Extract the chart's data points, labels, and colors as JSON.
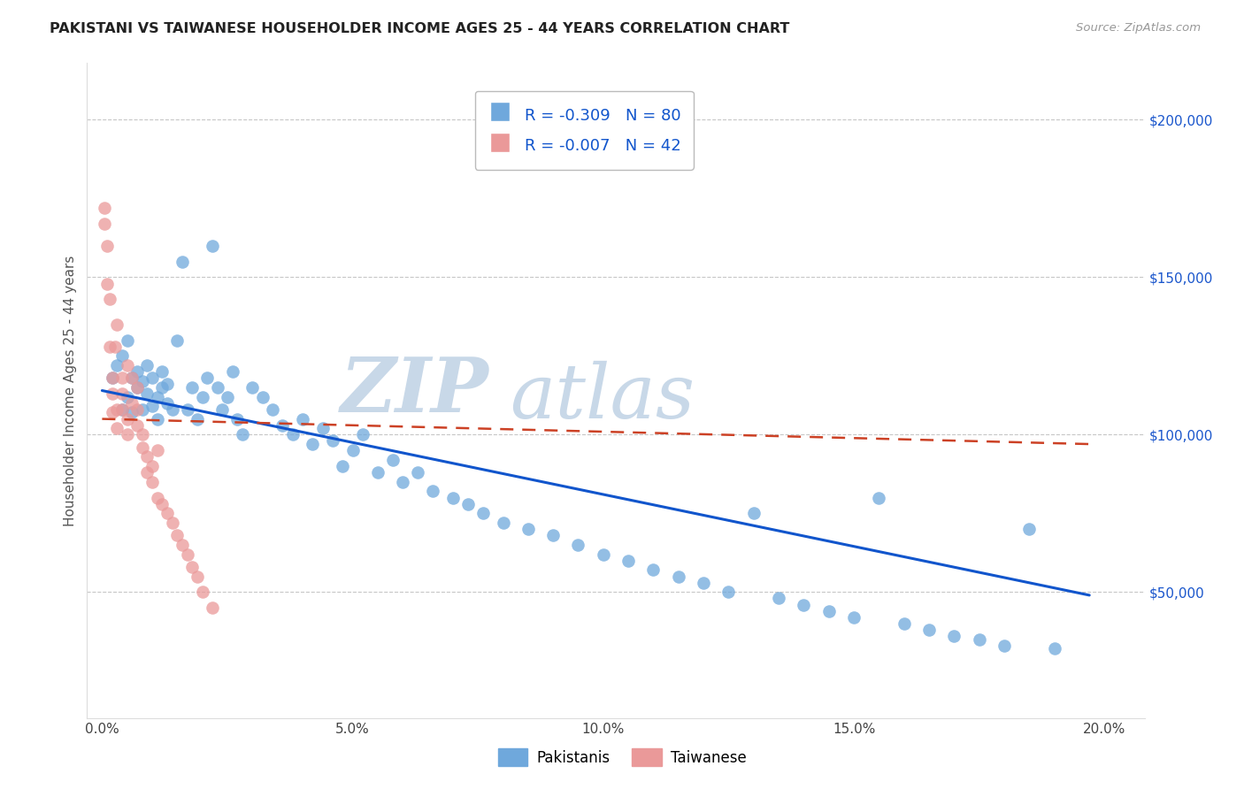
{
  "title": "PAKISTANI VS TAIWANESE HOUSEHOLDER INCOME AGES 25 - 44 YEARS CORRELATION CHART",
  "source": "Source: ZipAtlas.com",
  "xlabel_ticks": [
    "0.0%",
    "5.0%",
    "10.0%",
    "15.0%",
    "20.0%"
  ],
  "xlabel_tick_vals": [
    0.0,
    0.05,
    0.1,
    0.15,
    0.2
  ],
  "ylabel": "Householder Income Ages 25 - 44 years",
  "ylabel_ticks": [
    "$50,000",
    "$100,000",
    "$150,000",
    "$200,000"
  ],
  "ylabel_tick_vals": [
    50000,
    100000,
    150000,
    200000
  ],
  "xlim": [
    -0.003,
    0.208
  ],
  "ylim": [
    10000,
    218000
  ],
  "pakistani_R": -0.309,
  "pakistani_N": 80,
  "taiwanese_R": -0.007,
  "taiwanese_N": 42,
  "pakistani_color": "#6fa8dc",
  "taiwanese_color": "#ea9999",
  "trendline_pakistani_color": "#1155cc",
  "trendline_taiwanese_color": "#cc4125",
  "background_color": "#ffffff",
  "grid_color": "#b0b0b0",
  "watermark_zip": "ZIP",
  "watermark_atlas": "atlas",
  "watermark_color_zip": "#c8d8e8",
  "watermark_color_atlas": "#c8d8e8",
  "legend_text_color": "#1155cc",
  "pak_trendline_x0": 0.0,
  "pak_trendline_x1": 0.197,
  "pak_trendline_y0": 114000,
  "pak_trendline_y1": 49000,
  "tai_trendline_x0": 0.0,
  "tai_trendline_x1": 0.197,
  "tai_trendline_y0": 105000,
  "tai_trendline_y1": 97000,
  "pakistani_scatter_x": [
    0.002,
    0.003,
    0.004,
    0.004,
    0.005,
    0.005,
    0.006,
    0.006,
    0.007,
    0.007,
    0.008,
    0.008,
    0.009,
    0.009,
    0.01,
    0.01,
    0.011,
    0.011,
    0.012,
    0.012,
    0.013,
    0.013,
    0.014,
    0.015,
    0.016,
    0.017,
    0.018,
    0.019,
    0.02,
    0.021,
    0.022,
    0.023,
    0.024,
    0.025,
    0.026,
    0.027,
    0.028,
    0.03,
    0.032,
    0.034,
    0.036,
    0.038,
    0.04,
    0.042,
    0.044,
    0.046,
    0.048,
    0.05,
    0.052,
    0.055,
    0.058,
    0.06,
    0.063,
    0.066,
    0.07,
    0.073,
    0.076,
    0.08,
    0.085,
    0.09,
    0.095,
    0.1,
    0.105,
    0.11,
    0.115,
    0.12,
    0.125,
    0.13,
    0.135,
    0.14,
    0.145,
    0.15,
    0.155,
    0.16,
    0.165,
    0.17,
    0.175,
    0.18,
    0.185,
    0.19
  ],
  "pakistani_scatter_y": [
    118000,
    122000,
    108000,
    125000,
    112000,
    130000,
    107000,
    118000,
    115000,
    120000,
    108000,
    117000,
    113000,
    122000,
    109000,
    118000,
    112000,
    105000,
    115000,
    120000,
    110000,
    116000,
    108000,
    130000,
    155000,
    108000,
    115000,
    105000,
    112000,
    118000,
    160000,
    115000,
    108000,
    112000,
    120000,
    105000,
    100000,
    115000,
    112000,
    108000,
    103000,
    100000,
    105000,
    97000,
    102000,
    98000,
    90000,
    95000,
    100000,
    88000,
    92000,
    85000,
    88000,
    82000,
    80000,
    78000,
    75000,
    72000,
    70000,
    68000,
    65000,
    62000,
    60000,
    57000,
    55000,
    53000,
    50000,
    75000,
    48000,
    46000,
    44000,
    42000,
    80000,
    40000,
    38000,
    36000,
    35000,
    33000,
    70000,
    32000
  ],
  "taiwanese_scatter_x": [
    0.0005,
    0.0005,
    0.001,
    0.001,
    0.0015,
    0.0015,
    0.002,
    0.002,
    0.002,
    0.0025,
    0.003,
    0.003,
    0.003,
    0.004,
    0.004,
    0.004,
    0.005,
    0.005,
    0.005,
    0.006,
    0.006,
    0.007,
    0.007,
    0.007,
    0.008,
    0.008,
    0.009,
    0.009,
    0.01,
    0.01,
    0.011,
    0.011,
    0.012,
    0.013,
    0.014,
    0.015,
    0.016,
    0.017,
    0.018,
    0.019,
    0.02,
    0.022
  ],
  "taiwanese_scatter_y": [
    172000,
    167000,
    160000,
    148000,
    143000,
    128000,
    118000,
    113000,
    107000,
    128000,
    135000,
    108000,
    102000,
    118000,
    113000,
    108000,
    105000,
    100000,
    122000,
    118000,
    110000,
    115000,
    108000,
    103000,
    100000,
    96000,
    93000,
    88000,
    85000,
    90000,
    95000,
    80000,
    78000,
    75000,
    72000,
    68000,
    65000,
    62000,
    58000,
    55000,
    50000,
    45000
  ]
}
